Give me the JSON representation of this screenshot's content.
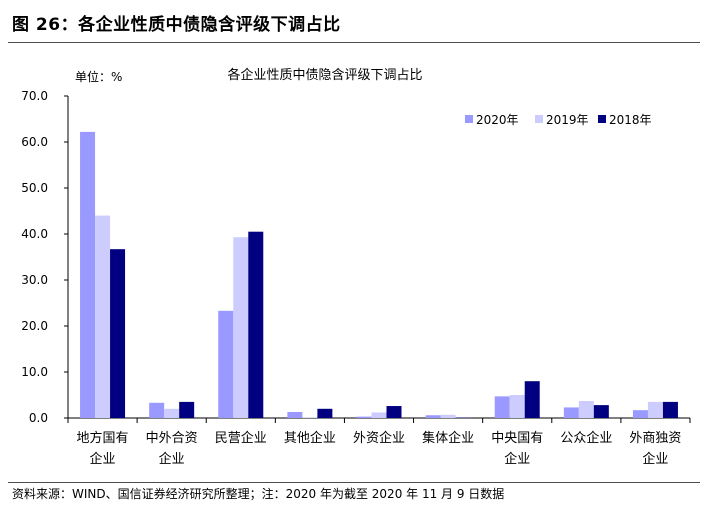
{
  "figure": {
    "title": "图 26：各企业性质中债隐含评级下调占比",
    "source": "资料来源：WIND、国信证券经济研究所整理；注：2020 年为截至 2020 年 11 月 9 日数据"
  },
  "chart_data": {
    "type": "bar",
    "title": "各企业性质中债隐含评级下调占比",
    "unit_label": "单位：%",
    "categories": [
      [
        "地方国有",
        "企业"
      ],
      [
        "中外合资",
        "企业"
      ],
      [
        "民营企业"
      ],
      [
        "其他企业"
      ],
      [
        "外资企业"
      ],
      [
        "集体企业"
      ],
      [
        "中央国有",
        "企业"
      ],
      [
        "公众企业"
      ],
      [
        "外商独资",
        "企业"
      ]
    ],
    "series": [
      {
        "name": "2020年",
        "color": "#9999ff",
        "values": [
          62.2,
          3.3,
          23.3,
          1.3,
          0.3,
          0.6,
          4.7,
          2.3,
          1.7
        ]
      },
      {
        "name": "2019年",
        "color": "#ccccff",
        "values": [
          44.0,
          2.0,
          39.3,
          0.1,
          1.2,
          0.7,
          5.0,
          3.7,
          3.5
        ]
      },
      {
        "name": "2018年",
        "color": "#000080",
        "values": [
          36.7,
          3.5,
          40.5,
          2.0,
          2.6,
          0.1,
          8.0,
          2.8,
          3.5
        ]
      }
    ],
    "yticks": [
      "0.0",
      "10.0",
      "20.0",
      "30.0",
      "40.0",
      "50.0",
      "60.0",
      "70.0"
    ],
    "ylim": [
      0,
      70
    ],
    "legend_position": "top-right",
    "grid": false
  }
}
